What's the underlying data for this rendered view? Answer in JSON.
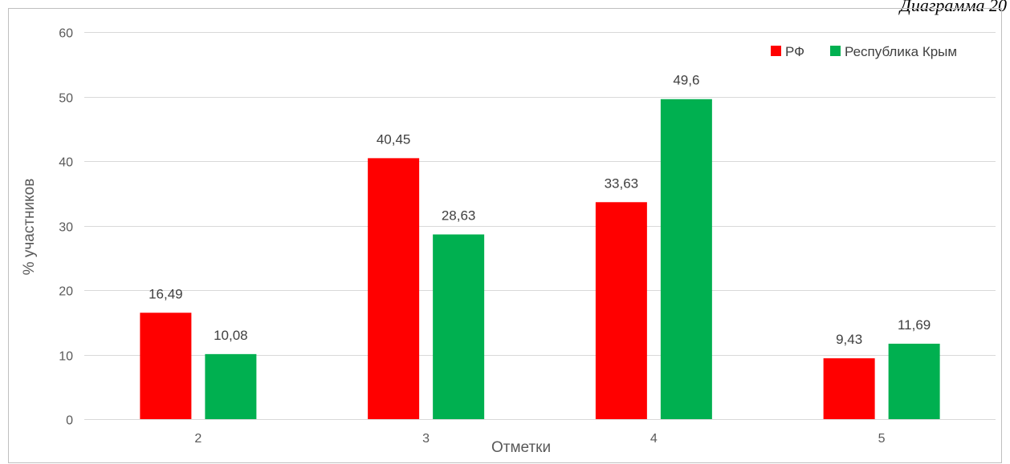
{
  "caption": "Диаграмма 20",
  "chart_data": {
    "type": "bar",
    "categories": [
      "2",
      "3",
      "4",
      "5"
    ],
    "series": [
      {
        "name": "РФ",
        "color": "#ff0000",
        "values": [
          16.49,
          40.45,
          33.63,
          9.43
        ],
        "labels": [
          "16,49",
          "40,45",
          "33,63",
          "9,43"
        ]
      },
      {
        "name": "Республика Крым",
        "color": "#00b050",
        "values": [
          10.08,
          28.63,
          49.6,
          11.69
        ],
        "labels": [
          "10,08",
          "28,63",
          "49,6",
          "11,69"
        ]
      }
    ],
    "xlabel": "Отметки",
    "ylabel": "% участников",
    "ylim": [
      0,
      60
    ],
    "yticks": [
      0,
      10,
      20,
      30,
      40,
      50,
      60
    ],
    "grid": true,
    "legend": "top-right"
  }
}
